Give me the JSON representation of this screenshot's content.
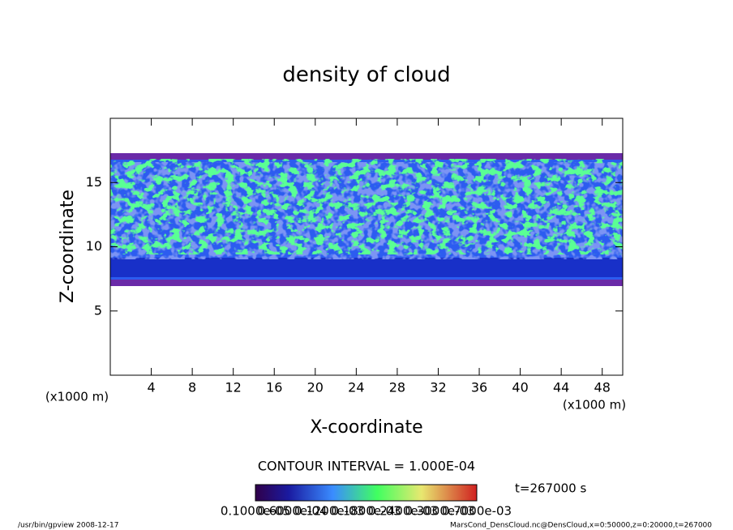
{
  "chart_data": {
    "type": "contour",
    "title": "density of cloud",
    "xlabel": "X-coordinate",
    "ylabel": "Z-coordinate",
    "xunit": "(x1000 m)",
    "yunit": "(x1000 m)",
    "xlim": [
      0,
      50
    ],
    "xticks": [
      4,
      8,
      12,
      16,
      20,
      24,
      28,
      32,
      36,
      40,
      44,
      48
    ],
    "ylim": [
      0,
      20
    ],
    "yticks": [
      5,
      10,
      15
    ],
    "contour_interval": "CONTOUR INTERVAL = 1.000E-04",
    "time": "t=267000 s",
    "colorbar_labels": [
      "0.1000e-05",
      "0.6000e-04",
      "0.1200e-03",
      "0.1800e-03",
      "0.2400e-03",
      "0.3000e-03",
      "0.7000e-03"
    ],
    "footer_left": "/usr/bin/gpview   2008-12-17",
    "footer_right": "MarsCond_DensCloud.nc@DensCloud,x=0:50000,z=0:20000,t=267000"
  }
}
